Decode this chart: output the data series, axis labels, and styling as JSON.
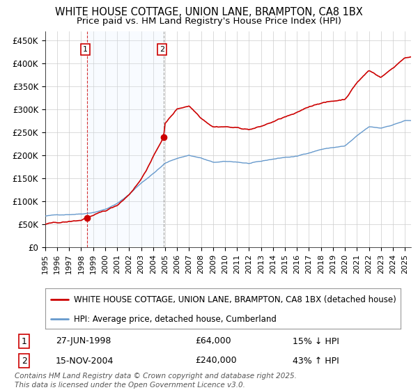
{
  "title": "WHITE HOUSE COTTAGE, UNION LANE, BRAMPTON, CA8 1BX",
  "subtitle": "Price paid vs. HM Land Registry's House Price Index (HPI)",
  "background_color": "#ffffff",
  "plot_bg_color": "#ffffff",
  "grid_color": "#cccccc",
  "shade_color": "#ddeeff",
  "ylim": [
    0,
    470000
  ],
  "yticks": [
    0,
    50000,
    100000,
    150000,
    200000,
    250000,
    300000,
    350000,
    400000,
    450000
  ],
  "ytick_labels": [
    "£0",
    "£50K",
    "£100K",
    "£150K",
    "£200K",
    "£250K",
    "£300K",
    "£350K",
    "£400K",
    "£450K"
  ],
  "x_start_year": 1995,
  "x_end_year": 2025,
  "xtick_years": [
    1995,
    1996,
    1997,
    1998,
    1999,
    2000,
    2001,
    2002,
    2003,
    2004,
    2005,
    2006,
    2007,
    2008,
    2009,
    2010,
    2011,
    2012,
    2013,
    2014,
    2015,
    2016,
    2017,
    2018,
    2019,
    2020,
    2021,
    2022,
    2023,
    2024,
    2025
  ],
  "hpi_color": "#6699cc",
  "price_color": "#cc0000",
  "marker_color": "#cc0000",
  "sale1_year": 1998.486,
  "sale1_price": 64000,
  "sale1_label": "1",
  "sale1_date": "27-JUN-1998",
  "sale1_pct": "15% ↓ HPI",
  "sale2_year": 2004.876,
  "sale2_price": 240000,
  "sale2_label": "2",
  "sale2_date": "15-NOV-2004",
  "sale2_pct": "43% ↑ HPI",
  "legend_line1": "WHITE HOUSE COTTAGE, UNION LANE, BRAMPTON, CA8 1BX (detached house)",
  "legend_line2": "HPI: Average price, detached house, Cumberland",
  "footer": "Contains HM Land Registry data © Crown copyright and database right 2025.\nThis data is licensed under the Open Government Licence v3.0.",
  "title_fontsize": 10.5,
  "subtitle_fontsize": 9.5,
  "axis_fontsize": 8.5,
  "legend_fontsize": 8.5,
  "table_fontsize": 9,
  "footer_fontsize": 7.5
}
